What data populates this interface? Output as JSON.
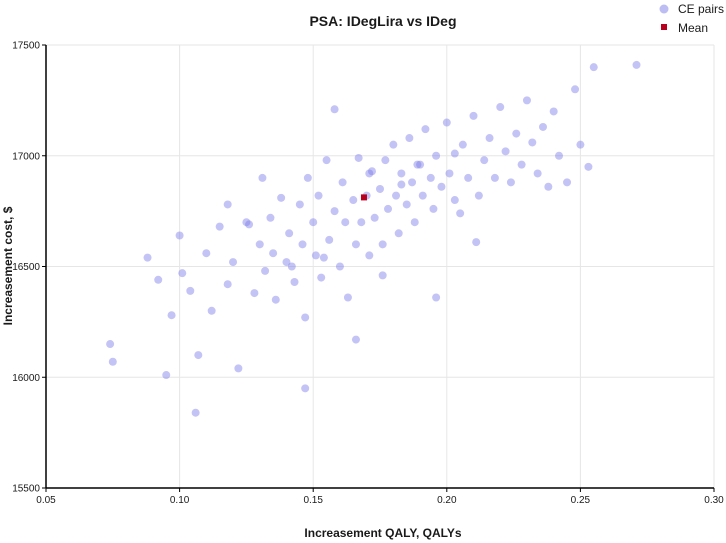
{
  "chart_data": {
    "type": "scatter",
    "title": "PSA: IDegLira vs IDeg",
    "xlabel": "Increasement QALY, QALYs",
    "ylabel": "Increasement cost, $",
    "xlim": [
      0.05,
      0.3
    ],
    "ylim": [
      15500,
      17500
    ],
    "xticks": [
      0.05,
      0.1,
      0.15,
      0.2,
      0.25,
      0.3
    ],
    "xtick_labels": [
      "0.05",
      "0.10",
      "0.15",
      "0.20",
      "0.25",
      "0.30"
    ],
    "yticks": [
      15500,
      16000,
      16500,
      17000,
      17500
    ],
    "ytick_labels": [
      "15500",
      "16000",
      "16500",
      "17000",
      "17500"
    ],
    "grid": true,
    "legend_position": "top-right",
    "series": [
      {
        "name": "CE pairs",
        "color": "#7b7be8",
        "marker": "circle",
        "x": [
          0.074,
          0.075,
          0.088,
          0.092,
          0.095,
          0.097,
          0.1,
          0.101,
          0.104,
          0.106,
          0.11,
          0.112,
          0.115,
          0.118,
          0.12,
          0.122,
          0.125,
          0.128,
          0.13,
          0.131,
          0.132,
          0.134,
          0.136,
          0.138,
          0.14,
          0.141,
          0.143,
          0.145,
          0.146,
          0.147,
          0.148,
          0.15,
          0.151,
          0.152,
          0.153,
          0.155,
          0.156,
          0.158,
          0.16,
          0.161,
          0.162,
          0.163,
          0.165,
          0.166,
          0.167,
          0.168,
          0.17,
          0.171,
          0.172,
          0.173,
          0.175,
          0.176,
          0.177,
          0.178,
          0.18,
          0.181,
          0.182,
          0.183,
          0.185,
          0.186,
          0.187,
          0.188,
          0.19,
          0.191,
          0.192,
          0.194,
          0.195,
          0.196,
          0.198,
          0.2,
          0.201,
          0.203,
          0.205,
          0.206,
          0.208,
          0.21,
          0.212,
          0.214,
          0.216,
          0.218,
          0.22,
          0.222,
          0.224,
          0.226,
          0.228,
          0.23,
          0.232,
          0.234,
          0.236,
          0.238,
          0.24,
          0.242,
          0.245,
          0.248,
          0.25,
          0.253,
          0.255,
          0.271,
          0.107,
          0.147,
          0.166,
          0.176,
          0.135,
          0.158,
          0.189,
          0.203,
          0.118,
          0.142,
          0.171,
          0.196,
          0.126,
          0.154,
          0.183,
          0.211
        ],
        "y": [
          16150,
          16070,
          16540,
          16440,
          16010,
          16280,
          16640,
          16470,
          16390,
          15840,
          16560,
          16300,
          16680,
          16420,
          16520,
          16040,
          16700,
          16380,
          16600,
          16900,
          16480,
          16720,
          16350,
          16810,
          16520,
          16650,
          16430,
          16780,
          16600,
          15950,
          16900,
          16700,
          16550,
          16820,
          16450,
          16980,
          16620,
          16750,
          16500,
          16880,
          16700,
          16360,
          16800,
          16600,
          16990,
          16700,
          16820,
          16550,
          16930,
          16720,
          16850,
          16600,
          16980,
          16760,
          17050,
          16820,
          16650,
          16920,
          16780,
          17080,
          16880,
          16700,
          16960,
          16820,
          17120,
          16900,
          16760,
          17000,
          16860,
          17150,
          16920,
          16800,
          16740,
          17050,
          16900,
          17180,
          16820,
          16980,
          17080,
          16900,
          17220,
          17020,
          16880,
          17100,
          16960,
          17250,
          17060,
          16920,
          17130,
          16860,
          17200,
          17000,
          16880,
          17300,
          17050,
          16950,
          17400,
          17410,
          16100,
          16270,
          16170,
          16460,
          16560,
          17210,
          16960,
          17010,
          16780,
          16500,
          16920,
          16360,
          16690,
          16540,
          16870,
          16610
        ]
      },
      {
        "name": "Mean",
        "color": "#b8001f",
        "marker": "square",
        "x": [
          0.169
        ],
        "y": [
          16812
        ]
      }
    ]
  }
}
